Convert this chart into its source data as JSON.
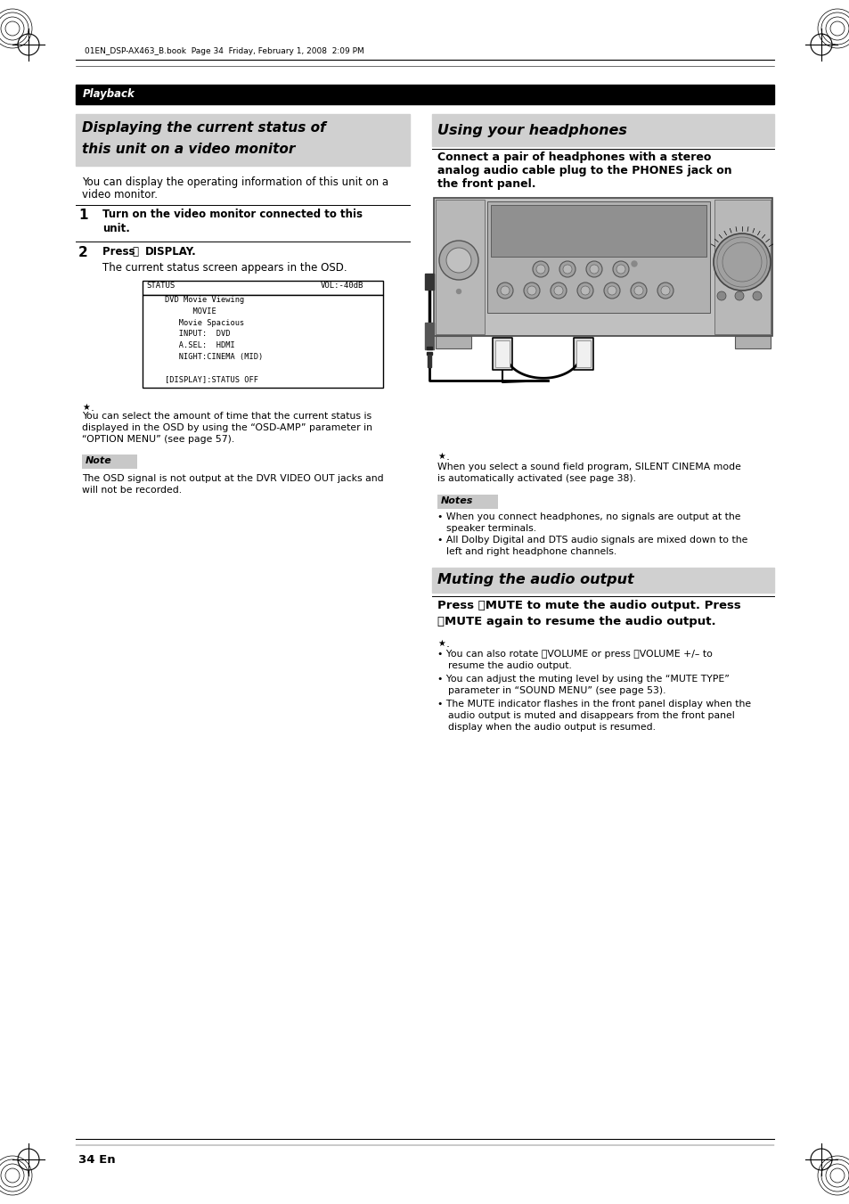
{
  "page_bg": "#ffffff",
  "header_bar_color": "#000000",
  "header_text": "Playback",
  "header_text_color": "#ffffff",
  "section_bg": "#d0d0d0",
  "body_text_color": "#000000",
  "note_bg": "#c8c8c8",
  "top_file_text": "01EN_DSP-AX463_B.book  Page 34  Friday, February 1, 2008  2:09 PM",
  "page_number": "34 En",
  "osd_lines": [
    "STATUS          VOL:-40dB",
    "   DVD Movie Viewing",
    "         MOVIE",
    "      Movie Spacious",
    "      INPUT:  DVD",
    "      A.SEL:  HDMI",
    "      NIGHT:CINEMA (MID)",
    "",
    "   [DISPLAY]:STATUS OFF"
  ]
}
